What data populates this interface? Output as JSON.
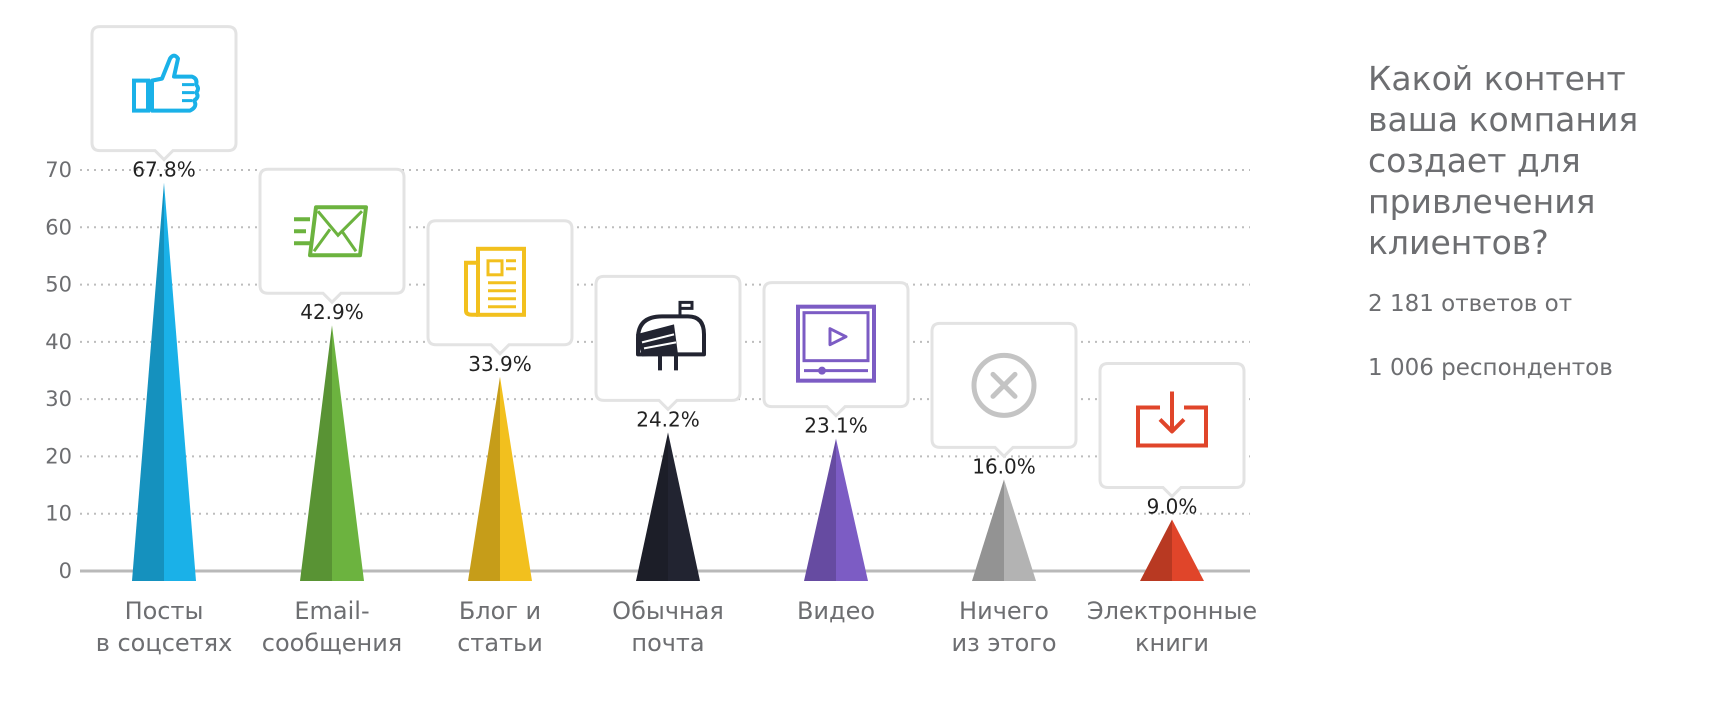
{
  "chart_data": {
    "type": "bar",
    "title": "Какой контент\nваша компания\nсоздает для\nпривлечения\nклиентов?",
    "subtitle_lines": [
      "2 181 ответов от",
      "1 006 респондентов"
    ],
    "categories": [
      [
        "Посты",
        "в соцсетях"
      ],
      [
        "Email-",
        "сообщения"
      ],
      [
        "Блог и",
        "статьи"
      ],
      [
        "Обычная",
        "почта"
      ],
      [
        "Видео"
      ],
      [
        "Ничего",
        "из этого"
      ],
      [
        "Электронные",
        "книги"
      ]
    ],
    "values": [
      67.8,
      42.9,
      33.9,
      24.2,
      23.1,
      16.0,
      9.0
    ],
    "value_labels": [
      "67.8%",
      "42.9%",
      "33.9%",
      "24.2%",
      "23.1%",
      "16.0%",
      "9.0%"
    ],
    "colors": [
      "#1ab1e8",
      "#6cb33f",
      "#f2c01e",
      "#222431",
      "#7c5cc4",
      "#b3b3b3",
      "#e0452a"
    ],
    "icons": [
      "thumbs-up-icon",
      "email-icon",
      "newspaper-icon",
      "mailbox-icon",
      "video-player-icon",
      "cancel-circle-icon",
      "download-icon"
    ],
    "ylim": [
      0,
      70
    ],
    "yticks": [
      "0",
      "10",
      "20",
      "30",
      "40",
      "50",
      "60",
      "70"
    ],
    "grid": true
  }
}
